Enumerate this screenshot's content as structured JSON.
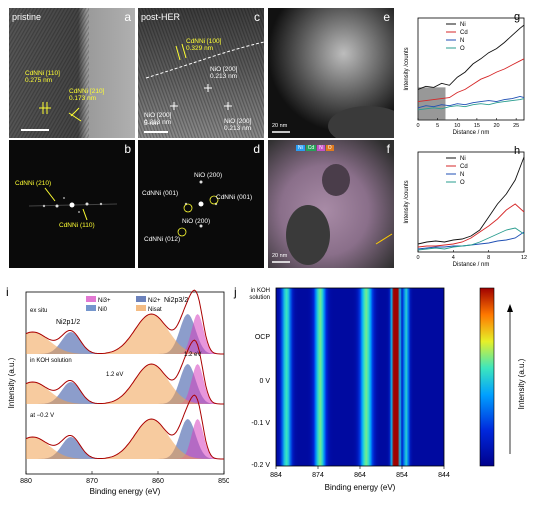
{
  "panels": {
    "a": {
      "letter": "a",
      "title": "pristine",
      "lattice1": "CdNNi",
      "lattice1_hkl": "[110]",
      "lattice1_d": "0.275 nm",
      "lattice2": "CdNNi",
      "lattice2_hkl": "[210]",
      "lattice2_d": "0.173 nm"
    },
    "b": {
      "letter": "b",
      "spot1": "CdNNi",
      "spot1_hkl": "(210)",
      "spot2": "CdNNi",
      "spot2_hkl": "(110)"
    },
    "c": {
      "letter": "c",
      "title": "post-HER",
      "l1": "CdNNi",
      "l1_hkl": "[100]",
      "l1_d": "0.329 nm",
      "l2": "NiO [200]",
      "l2_d": "0.213 nm",
      "l3": "NiO [200]",
      "l3_d": "0.213 nm",
      "l4": "NiO [200]",
      "l4_d": "0.213 nm",
      "scalebar": "5 nm"
    },
    "d": {
      "letter": "d",
      "s1": "NiO (200)",
      "s2": "CdNNi",
      "s2_hkl": "(001)",
      "s3": "CdNNi",
      "s3_hkl": "(001)",
      "s4": "NiO (200)",
      "s5": "CdNNi",
      "s5_hkl": "(012)"
    },
    "e": {
      "letter": "e",
      "scalebar": "20 nm"
    },
    "f": {
      "letter": "f",
      "scalebar": "20 nm",
      "legend": [
        "Ni",
        "Cd",
        "N",
        "O"
      ]
    },
    "i": {
      "letter": "i"
    },
    "j": {
      "letter": "j"
    }
  },
  "colors": {
    "Ni": "#111111",
    "Cd": "#d62728",
    "N": "#1f4fb4",
    "O": "#2a9d8f",
    "yellow": "#ffff33"
  },
  "chart_data": [
    {
      "id": "g",
      "type": "line",
      "letter": "g",
      "xlabel": "Distance / nm",
      "ylabel": "Intensity /counts",
      "xlim": [
        0,
        27
      ],
      "xticks": [
        0,
        5,
        10,
        15,
        20,
        25
      ],
      "series": [
        {
          "name": "Ni",
          "color": "#111111",
          "x": [
            0,
            2,
            4,
            6,
            8,
            10,
            12,
            14,
            16,
            18,
            20,
            22,
            24,
            26,
            27
          ],
          "y": [
            0.3,
            0.33,
            0.32,
            0.36,
            0.34,
            0.42,
            0.47,
            0.55,
            0.6,
            0.66,
            0.7,
            0.76,
            0.83,
            0.9,
            0.93
          ]
        },
        {
          "name": "Cd",
          "color": "#d62728",
          "x": [
            0,
            2,
            4,
            6,
            8,
            10,
            12,
            14,
            16,
            18,
            20,
            22,
            24,
            26,
            27
          ],
          "y": [
            0.18,
            0.19,
            0.2,
            0.21,
            0.22,
            0.27,
            0.3,
            0.35,
            0.4,
            0.43,
            0.47,
            0.5,
            0.54,
            0.58,
            0.6
          ]
        },
        {
          "name": "N",
          "color": "#1f4fb4",
          "x": [
            0,
            2,
            4,
            6,
            8,
            10,
            12,
            14,
            16,
            18,
            20,
            22,
            24,
            26,
            27
          ],
          "y": [
            0.12,
            0.14,
            0.13,
            0.15,
            0.14,
            0.16,
            0.15,
            0.17,
            0.18,
            0.19,
            0.18,
            0.2,
            0.21,
            0.23,
            0.22
          ]
        },
        {
          "name": "O",
          "color": "#2a9d8f",
          "x": [
            0,
            2,
            4,
            6,
            8,
            10,
            12,
            14,
            16,
            18,
            20,
            22,
            24,
            26,
            27
          ],
          "y": [
            0.1,
            0.11,
            0.12,
            0.11,
            0.13,
            0.14,
            0.13,
            0.15,
            0.16,
            0.15,
            0.17,
            0.18,
            0.19,
            0.2,
            0.21
          ]
        }
      ],
      "legend": [
        "Ni",
        "Cd",
        "N",
        "O"
      ]
    },
    {
      "id": "h",
      "type": "line",
      "letter": "h",
      "xlabel": "Distance / nm",
      "ylabel": "Intensity /counts",
      "xlim": [
        0,
        12
      ],
      "xticks": [
        0,
        4,
        8,
        12
      ],
      "series": [
        {
          "name": "Ni",
          "color": "#111111",
          "x": [
            0,
            1,
            2,
            3,
            4,
            5,
            6,
            7,
            8,
            9,
            10,
            11,
            12
          ],
          "y": [
            0.08,
            0.1,
            0.11,
            0.1,
            0.12,
            0.13,
            0.16,
            0.22,
            0.35,
            0.48,
            0.58,
            0.72,
            0.95
          ]
        },
        {
          "name": "Cd",
          "color": "#d62728",
          "x": [
            0,
            1,
            2,
            3,
            4,
            5,
            6,
            7,
            8,
            9,
            10,
            11,
            12
          ],
          "y": [
            0.05,
            0.06,
            0.06,
            0.07,
            0.08,
            0.1,
            0.14,
            0.2,
            0.26,
            0.33,
            0.42,
            0.48,
            0.4
          ]
        },
        {
          "name": "N",
          "color": "#1f4fb4",
          "x": [
            0,
            1,
            2,
            3,
            4,
            5,
            6,
            7,
            8,
            9,
            10,
            11,
            12
          ],
          "y": [
            0.03,
            0.04,
            0.05,
            0.05,
            0.06,
            0.06,
            0.07,
            0.08,
            0.09,
            0.11,
            0.12,
            0.14,
            0.2
          ]
        },
        {
          "name": "O",
          "color": "#2a9d8f",
          "x": [
            0,
            1,
            2,
            3,
            4,
            5,
            6,
            7,
            8,
            9,
            10,
            11,
            12
          ],
          "y": [
            0.02,
            0.03,
            0.04,
            0.03,
            0.05,
            0.06,
            0.07,
            0.1,
            0.14,
            0.18,
            0.22,
            0.24,
            0.18
          ]
        }
      ],
      "legend": [
        "Ni",
        "Cd",
        "N",
        "O"
      ]
    },
    {
      "id": "i",
      "type": "line",
      "xlabel": "Binding energy (eV)",
      "ylabel": "Intensity (a.u.)",
      "xlim": [
        880,
        850
      ],
      "xticks": [
        880,
        870,
        860,
        850
      ],
      "xticklabels": [
        "880",
        "870",
        "860",
        "850"
      ],
      "spectra": [
        {
          "name": "ex situ",
          "offset": 2.0
        },
        {
          "name": "in KOH solution",
          "offset": 1.0
        },
        {
          "name": "at −0.2 V",
          "offset": 0.0
        }
      ],
      "annotations": [
        "Ni2p1/2",
        "Ni2p3/2",
        "1.2 eV",
        "1.2 eV"
      ],
      "legend": [
        "Ni3+",
        "Ni2+",
        "Ni0",
        "Nisat"
      ]
    },
    {
      "id": "j",
      "type": "heatmap",
      "xlabel": "Binding energy (eV)",
      "xlim": [
        884,
        844
      ],
      "xticks": [
        "884",
        "874",
        "864",
        "854",
        "844"
      ],
      "ylabels": [
        "in KOH solution",
        "OCP",
        "0 V",
        "-0.1 V",
        "-0.2 V"
      ],
      "colorbar_label": "Intensity (a.u.)",
      "bands_eV": [
        881.5,
        873.5,
        862.5,
        855.8,
        855.0,
        853.0
      ]
    }
  ]
}
